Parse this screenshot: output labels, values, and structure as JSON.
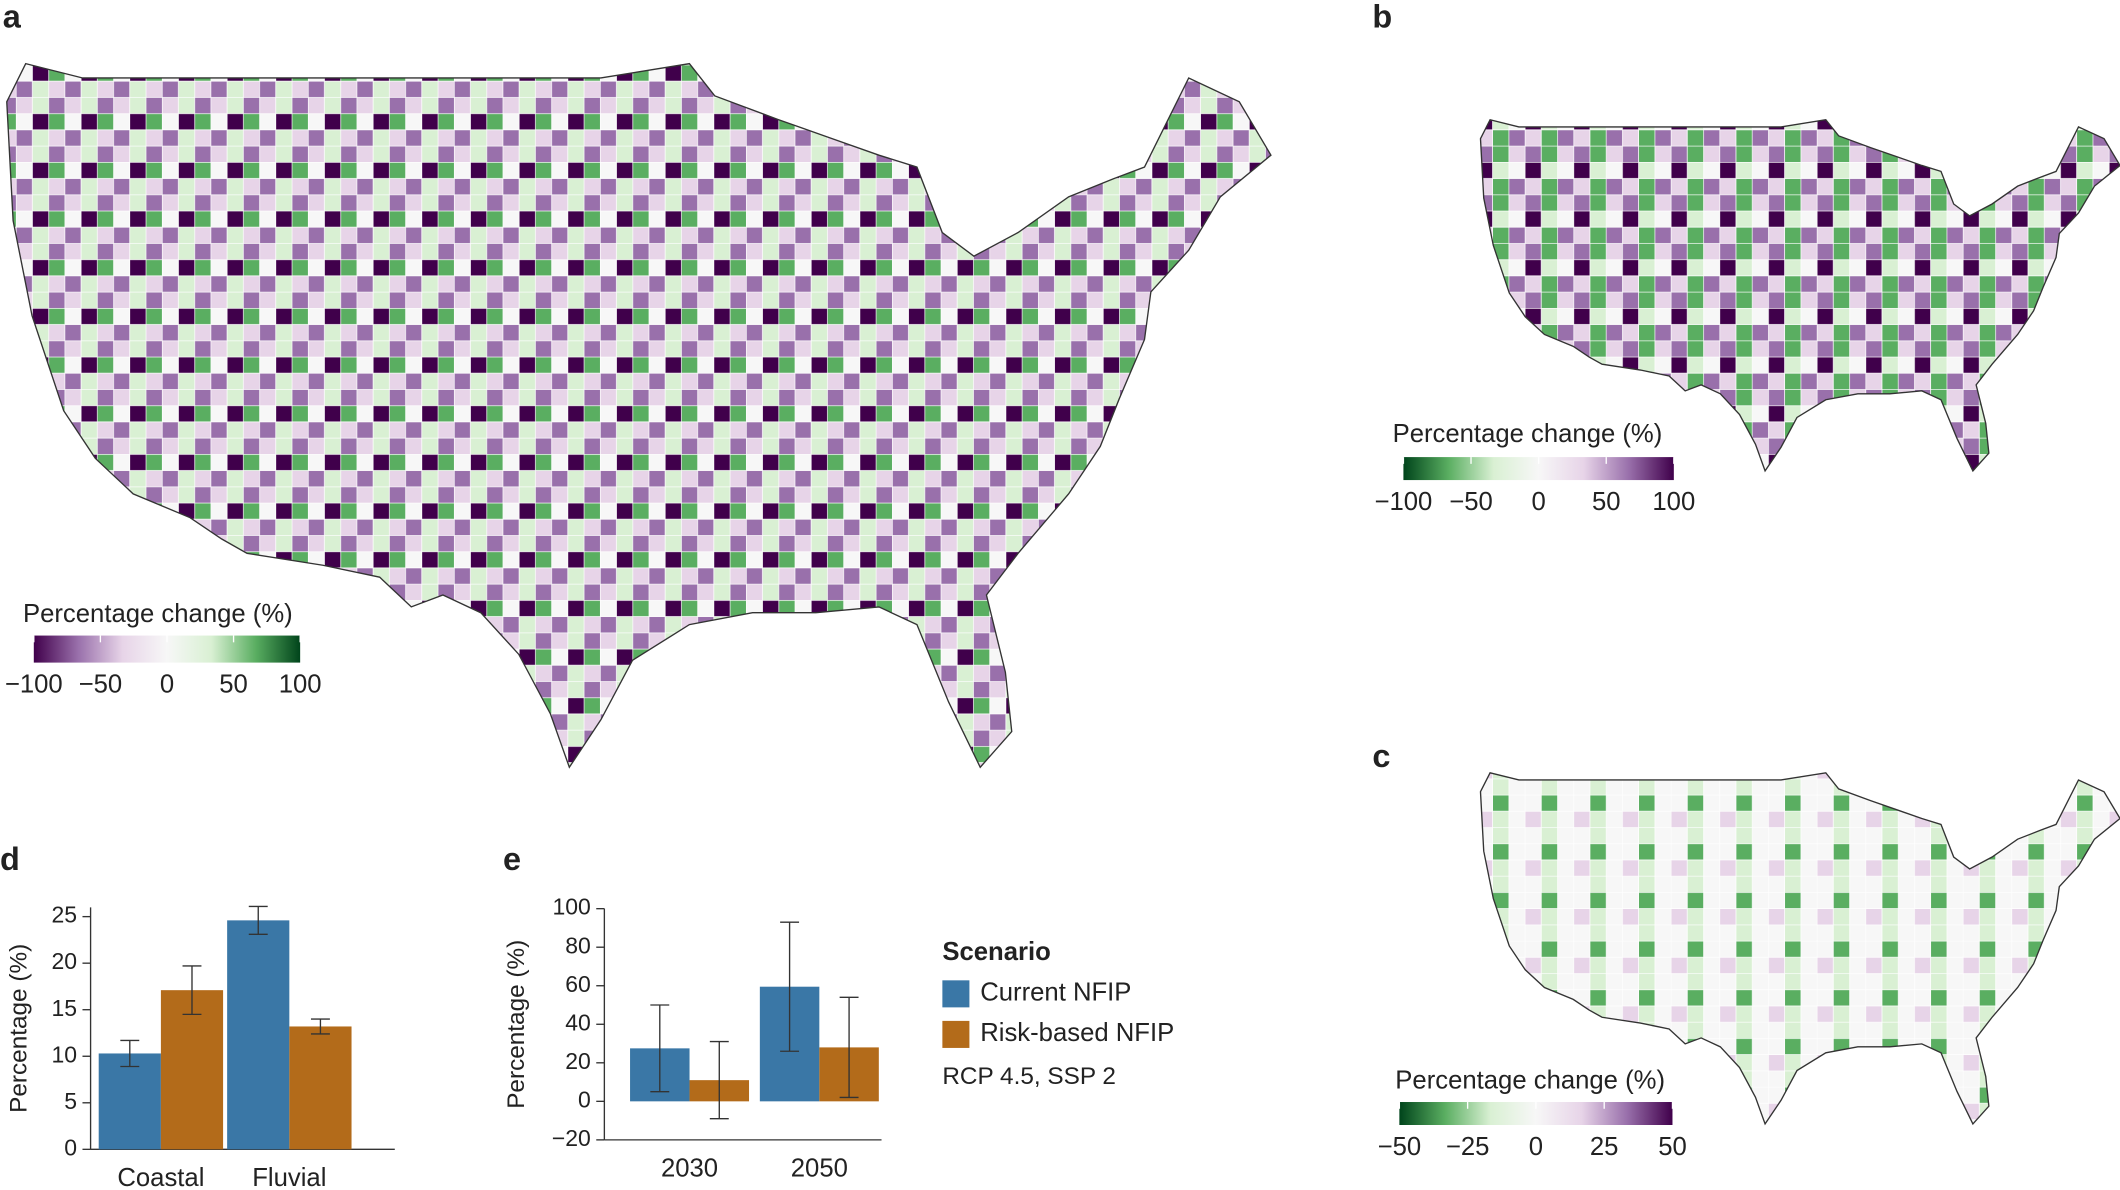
{
  "chart_data": [
    {
      "type": "map",
      "panel": "a",
      "colorbar_title": "Percentage change (%)",
      "clim": [
        -100,
        100
      ],
      "cmap": [
        "#40004b",
        "#9970ab",
        "#e7d4e8",
        "#f7f7f7",
        "#d9f0d3",
        "#5aae61",
        "#00441b"
      ],
      "colorbar_ticks": [
        {
          "value": -100,
          "label": "−100"
        },
        {
          "value": -50,
          "label": "−50"
        },
        0,
        50,
        100
      ]
    },
    {
      "type": "map",
      "panel": "b",
      "colorbar_title": "Percentage change (%)",
      "clim": [
        -100,
        100
      ],
      "cmap": [
        "#00441b",
        "#5aae61",
        "#d9f0d3",
        "#f7f7f7",
        "#e7d4e8",
        "#9970ab",
        "#40004b"
      ],
      "colorbar_ticks": [
        {
          "value": -100,
          "label": "−100"
        },
        {
          "value": -50,
          "label": "−50"
        },
        0,
        50,
        100
      ]
    },
    {
      "type": "map",
      "panel": "c",
      "colorbar_title": "Percentage change (%)",
      "clim": [
        -50,
        50
      ],
      "cmap": [
        "#00441b",
        "#5aae61",
        "#d9f0d3",
        "#f7f7f7",
        "#e7d4e8",
        "#9970ab",
        "#40004b"
      ],
      "colorbar_ticks": [
        {
          "value": -50,
          "label": "−50"
        },
        {
          "value": -25,
          "label": "−25"
        },
        0,
        25,
        50
      ]
    },
    {
      "type": "bar",
      "panel": "d",
      "ylabel": "Percentage (%)",
      "categories": [
        "Coastal",
        "Fluvial"
      ],
      "series": [
        {
          "color": "#3a77a6",
          "values": [
            10.3,
            24.6
          ],
          "errors": [
            1.4,
            1.5
          ]
        },
        {
          "color": "#b36b1a",
          "values": [
            17.1,
            13.2
          ],
          "errors": [
            2.6,
            0.8
          ]
        }
      ],
      "ylim": [
        0,
        26
      ],
      "yticks": [
        0,
        5,
        10,
        15,
        20,
        25
      ]
    },
    {
      "type": "bar",
      "panel": "e",
      "ylabel": "Percentage (%)",
      "categories": [
        "2030",
        "2050"
      ],
      "series": [
        {
          "name": "Current NFIP",
          "color": "#3a77a6",
          "values": [
            27.5,
            59.5
          ],
          "errors": [
            22.5,
            33.5
          ]
        },
        {
          "name": "Risk-based NFIP",
          "color": "#b36b1a",
          "values": [
            11,
            28
          ],
          "errors": [
            20,
            26
          ]
        }
      ],
      "ylim": [
        -20,
        100
      ],
      "yticks": [
        {
          "value": -20,
          "label": "−20"
        },
        0,
        20,
        40,
        60,
        80,
        100
      ],
      "legend_title": "Scenario",
      "note": "RCP 4.5, SSP 2"
    }
  ]
}
